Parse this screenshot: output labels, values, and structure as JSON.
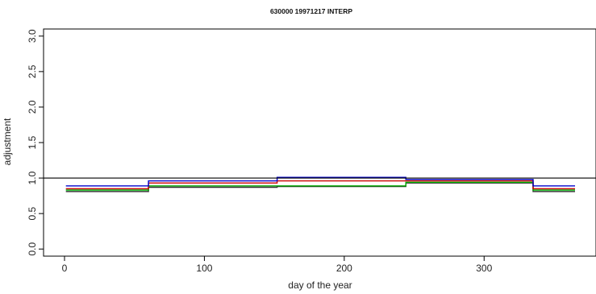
{
  "chart_data": {
    "type": "line",
    "title": "630000 19971217 INTERP",
    "xlabel": "day of the year",
    "ylabel": "adjustment",
    "xlim": [
      -15,
      380
    ],
    "ylim": [
      -0.1,
      3.1
    ],
    "xticks": [
      0,
      100,
      200,
      300
    ],
    "yticks": [
      0.0,
      0.5,
      1.0,
      1.5,
      2.0,
      2.5,
      3.0
    ],
    "xtick_labels": [
      "0",
      "100",
      "200",
      "300"
    ],
    "ytick_labels": [
      "0.0",
      "0.5",
      "1.0",
      "1.5",
      "2.0",
      "2.5",
      "3.0"
    ],
    "reference_line": {
      "y": 1.0,
      "color": "#000000"
    },
    "grid": false,
    "series": [
      {
        "color": "#0000cc",
        "step_x": [
          1,
          60,
          152,
          244,
          335,
          365
        ],
        "values": [
          0.89,
          0.96,
          1.01,
          0.98,
          0.89
        ]
      },
      {
        "color": "#cc0000",
        "step_x": [
          1,
          60,
          152,
          244,
          335,
          365
        ],
        "values": [
          0.85,
          0.93,
          0.96,
          0.96,
          0.85
        ]
      },
      {
        "color": "#00aa00",
        "step_x": [
          1,
          60,
          152,
          244,
          335,
          365
        ],
        "values": [
          0.83,
          0.89,
          0.89,
          0.94,
          0.83
        ]
      },
      {
        "color": "#333333",
        "step_x": [
          1,
          60,
          152,
          244,
          335,
          365
        ],
        "values": [
          0.81,
          0.87,
          0.88,
          0.93,
          0.81
        ]
      }
    ]
  }
}
